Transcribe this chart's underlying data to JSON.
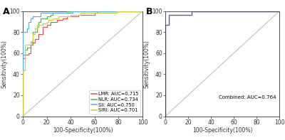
{
  "panel_A": {
    "title": "A",
    "xlabel": "100-Specificity(100%)",
    "ylabel": "Sensitivity(100%)",
    "xlim": [
      0,
      100
    ],
    "ylim": [
      0,
      100
    ],
    "xticks": [
      0,
      20,
      40,
      60,
      80,
      100
    ],
    "yticks": [
      0,
      20,
      40,
      60,
      80,
      100
    ],
    "curves": [
      {
        "label": "LMR: AUC=0.715",
        "color": "#e05252",
        "auc": 0.715,
        "seed": 101
      },
      {
        "label": "NLR: AUC=0.734",
        "color": "#4db84d",
        "auc": 0.734,
        "seed": 202
      },
      {
        "label": "SII: AUC=0.750",
        "color": "#5aacdc",
        "auc": 0.75,
        "seed": 303
      },
      {
        "label": "SIRI: AUC=0.701",
        "color": "#d4cc40",
        "auc": 0.701,
        "seed": 404
      }
    ],
    "diagonal_color": "#c0c0c0"
  },
  "panel_B": {
    "title": "B",
    "xlabel": "100-Specificity(100%)",
    "ylabel": "Sensitivity(100%)",
    "xlim": [
      0,
      100
    ],
    "ylim": [
      0,
      100
    ],
    "xticks": [
      0,
      20,
      40,
      60,
      80,
      100
    ],
    "yticks": [
      0,
      20,
      40,
      60,
      80,
      100
    ],
    "curve": {
      "label": "Combined: AUC=0.764",
      "color": "#7744bb",
      "auc": 0.764,
      "seed": 505
    },
    "diagonal_color": "#c0c0c0",
    "annotation": "Combined: AUC=0.764"
  },
  "background_color": "#ffffff",
  "axes_color": "#333333",
  "tick_fontsize": 5.5,
  "label_fontsize": 5.5,
  "legend_fontsize": 4.8,
  "title_fontsize": 9,
  "line_width": 0.85
}
